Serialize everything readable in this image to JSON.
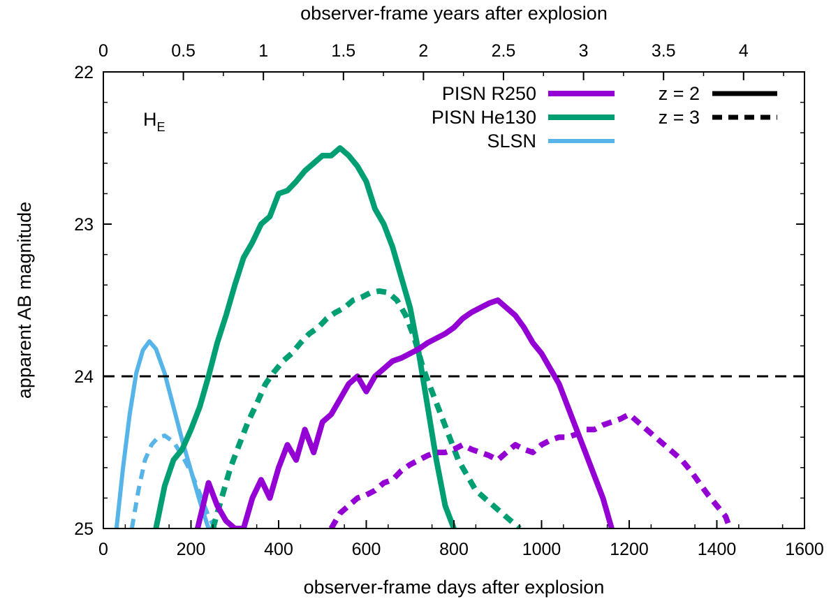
{
  "chart_data": {
    "type": "line",
    "title": "",
    "xlabel": "observer-frame days after explosion",
    "x2label": "observer-frame years after explosion",
    "ylabel": "apparent AB magnitude",
    "panel_label": "H",
    "panel_label_sub": "E",
    "xlim": [
      0,
      1600
    ],
    "ylim": [
      25,
      22
    ],
    "y_inverted": true,
    "x_ticks": [
      "0",
      "200",
      "400",
      "600",
      "800",
      "1000",
      "1200",
      "1400",
      "1600"
    ],
    "y_ticks": [
      "22",
      "23",
      "24",
      "25"
    ],
    "x2_ticks": [
      "0",
      "0.5",
      "1",
      "1.5",
      "2",
      "2.5",
      "3",
      "3.5",
      "4"
    ],
    "x2_tick_days": [
      0,
      182.6,
      365.25,
      547.9,
      730.5,
      913.1,
      1095.8,
      1278.4,
      1461
    ],
    "grid": false,
    "colors": {
      "PISN R250": "#9400d3",
      "PISN He130": "#009e73",
      "SLSN": "#56b4e9",
      "threshold": "#000000"
    },
    "legend": {
      "placement": "top-right",
      "models": [
        "PISN R250",
        "PISN He130",
        "SLSN"
      ],
      "redshifts": [
        "z = 2",
        "z = 3"
      ]
    },
    "threshold": {
      "y": 24,
      "style": "dashed"
    },
    "series": [
      {
        "model": "SLSN",
        "z": "z = 2",
        "style": "solid",
        "x": [
          30,
          45,
          60,
          75,
          90,
          105,
          120,
          140,
          160,
          180,
          200,
          220,
          240
        ],
        "y": [
          25.0,
          24.6,
          24.25,
          23.98,
          23.83,
          23.77,
          23.82,
          23.98,
          24.2,
          24.42,
          24.62,
          24.82,
          25.0
        ]
      },
      {
        "model": "SLSN",
        "z": "z = 3",
        "style": "dashed",
        "x": [
          65,
          80,
          95,
          110,
          125,
          140,
          160,
          180,
          200,
          220,
          240,
          255
        ],
        "y": [
          25.0,
          24.75,
          24.55,
          24.45,
          24.4,
          24.39,
          24.43,
          24.52,
          24.63,
          24.77,
          24.92,
          25.0
        ]
      },
      {
        "model": "PISN He130",
        "z": "z = 2",
        "style": "solid",
        "x": [
          120,
          140,
          160,
          180,
          200,
          220,
          240,
          260,
          280,
          300,
          320,
          340,
          360,
          380,
          400,
          420,
          440,
          460,
          480,
          500,
          520,
          540,
          560,
          580,
          600,
          620,
          640,
          660,
          680,
          700,
          720,
          740,
          760,
          780,
          800
        ],
        "y": [
          25.0,
          24.72,
          24.55,
          24.48,
          24.35,
          24.2,
          24.0,
          23.78,
          23.6,
          23.4,
          23.22,
          23.12,
          23.0,
          22.95,
          22.8,
          22.78,
          22.72,
          22.65,
          22.6,
          22.55,
          22.55,
          22.5,
          22.55,
          22.62,
          22.72,
          22.9,
          23.0,
          23.15,
          23.35,
          23.55,
          23.85,
          24.2,
          24.55,
          24.85,
          25.0
        ]
      },
      {
        "model": "PISN He130",
        "z": "z = 3",
        "style": "dashed",
        "x": [
          250,
          270,
          290,
          310,
          330,
          350,
          370,
          390,
          410,
          430,
          450,
          470,
          490,
          510,
          530,
          550,
          570,
          590,
          610,
          630,
          650,
          670,
          690,
          710,
          730,
          750,
          770,
          790,
          810,
          830,
          850,
          870,
          890,
          910,
          930,
          950
        ],
        "y": [
          25.0,
          24.8,
          24.6,
          24.45,
          24.3,
          24.18,
          24.05,
          23.97,
          23.9,
          23.85,
          23.78,
          23.72,
          23.68,
          23.62,
          23.58,
          23.55,
          23.5,
          23.48,
          23.45,
          23.44,
          23.45,
          23.5,
          23.6,
          23.75,
          23.95,
          24.1,
          24.25,
          24.4,
          24.55,
          24.65,
          24.75,
          24.8,
          24.85,
          24.9,
          24.95,
          25.0
        ]
      },
      {
        "model": "PISN R250",
        "z": "z = 2",
        "style": "solid",
        "x": [
          215,
          240,
          260,
          280,
          300,
          320,
          340,
          360,
          380,
          400,
          420,
          440,
          460,
          480,
          500,
          520,
          540,
          560,
          580,
          600,
          620,
          640,
          660,
          680,
          700,
          720,
          740,
          760,
          780,
          800,
          820,
          840,
          860,
          880,
          900,
          920,
          940,
          960,
          980,
          1000,
          1020,
          1040,
          1060,
          1080,
          1100,
          1120,
          1140,
          1160
        ],
        "y": [
          25.0,
          24.7,
          24.85,
          24.95,
          25.0,
          25.0,
          24.8,
          24.68,
          24.8,
          24.6,
          24.45,
          24.55,
          24.35,
          24.5,
          24.3,
          24.25,
          24.15,
          24.05,
          24.0,
          24.1,
          24.0,
          23.95,
          23.9,
          23.88,
          23.85,
          23.82,
          23.78,
          23.75,
          23.72,
          23.68,
          23.62,
          23.58,
          23.55,
          23.52,
          23.5,
          23.55,
          23.6,
          23.68,
          23.78,
          23.85,
          23.95,
          24.05,
          24.2,
          24.35,
          24.5,
          24.65,
          24.8,
          25.0
        ]
      },
      {
        "model": "PISN R250",
        "z": "z = 3",
        "style": "dashed",
        "x": [
          520,
          540,
          560,
          580,
          600,
          620,
          640,
          660,
          680,
          700,
          720,
          740,
          760,
          780,
          800,
          820,
          840,
          860,
          880,
          900,
          920,
          940,
          960,
          980,
          1000,
          1020,
          1040,
          1060,
          1080,
          1100,
          1120,
          1140,
          1160,
          1180,
          1200,
          1220,
          1240,
          1260,
          1280,
          1300,
          1320,
          1340,
          1360,
          1380,
          1400,
          1420,
          1430
        ],
        "y": [
          25.0,
          24.9,
          24.85,
          24.8,
          24.78,
          24.75,
          24.7,
          24.68,
          24.62,
          24.58,
          24.55,
          24.52,
          24.5,
          24.5,
          24.48,
          24.45,
          24.48,
          24.5,
          24.52,
          24.55,
          24.5,
          24.45,
          24.48,
          24.5,
          24.45,
          24.42,
          24.4,
          24.4,
          24.38,
          24.35,
          24.35,
          24.32,
          24.3,
          24.28,
          24.25,
          24.3,
          24.35,
          24.4,
          24.45,
          24.5,
          24.55,
          24.62,
          24.7,
          24.78,
          24.85,
          24.92,
          25.0
        ]
      }
    ]
  }
}
